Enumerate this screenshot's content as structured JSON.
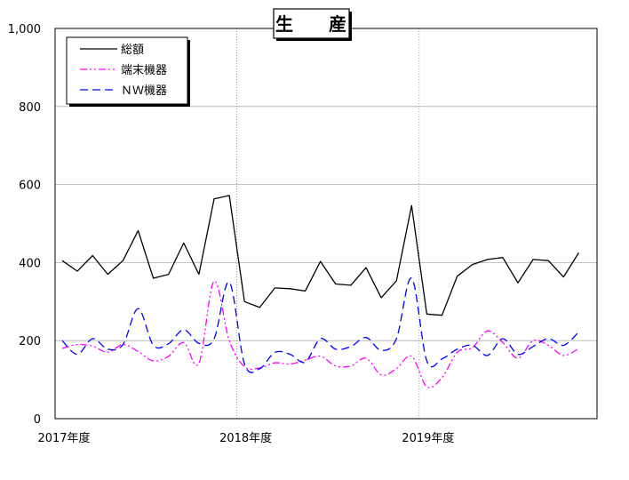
{
  "chart_data": {
    "type": "line",
    "title": "生　産",
    "xlabel": "",
    "ylabel": "",
    "ylim": [
      0,
      1000
    ],
    "yticks": [
      0,
      200,
      400,
      600,
      800,
      1000
    ],
    "ytick_labels": [
      "0",
      "200",
      "400",
      "600",
      "800",
      "1,000"
    ],
    "x_tick_labels": [
      {
        "index": 0,
        "label": "2017年度"
      },
      {
        "index": 12,
        "label": "2018年度"
      },
      {
        "index": 24,
        "label": "2019年度"
      }
    ],
    "x_count": 36,
    "grid": true,
    "legend_position": "top-left",
    "series": [
      {
        "name": "総額",
        "color": "#000000",
        "style": "solid",
        "smooth": false,
        "values": [
          405,
          378,
          418,
          370,
          405,
          482,
          360,
          370,
          450,
          370,
          563,
          572,
          300,
          285,
          335,
          333,
          327,
          403,
          345,
          342,
          387,
          310,
          353,
          546,
          268,
          265,
          365,
          395,
          408,
          413,
          348,
          408,
          405,
          363,
          425
        ]
      },
      {
        "name": "端末機器",
        "color": "#ff00ff",
        "style": "dashdotdot",
        "smooth": true,
        "values": [
          180,
          190,
          186,
          170,
          190,
          172,
          148,
          160,
          195,
          142,
          352,
          200,
          133,
          130,
          143,
          140,
          150,
          160,
          135,
          135,
          155,
          112,
          128,
          160,
          82,
          105,
          170,
          182,
          225,
          195,
          155,
          200,
          188,
          162,
          180
        ]
      },
      {
        "name": "ＮＷ機器",
        "color": "#0000ff",
        "style": "dashed",
        "smooth": true,
        "values": [
          200,
          165,
          205,
          178,
          190,
          282,
          188,
          192,
          228,
          193,
          205,
          350,
          140,
          128,
          170,
          165,
          145,
          205,
          178,
          185,
          208,
          175,
          205,
          360,
          148,
          153,
          178,
          188,
          162,
          205,
          165,
          185,
          205,
          188,
          222
        ]
      }
    ]
  }
}
